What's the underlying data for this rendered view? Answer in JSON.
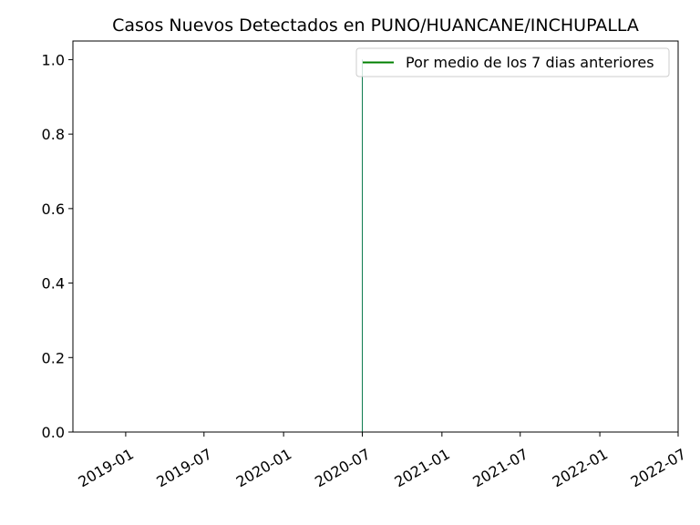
{
  "chart_data": {
    "type": "bar",
    "title": "Casos Nuevos Detectados en PUNO/HUANCANE/INCHUPALLA",
    "xlabel": "",
    "ylabel": "",
    "x_axis_type": "date",
    "xlim": [
      "2018-09-01",
      "2022-07-01"
    ],
    "ylim": [
      0,
      1.05
    ],
    "x_ticks": [
      "2019-01",
      "2019-07",
      "2020-01",
      "2020-07",
      "2021-01",
      "2021-07",
      "2022-01",
      "2022-07"
    ],
    "y_ticks": [
      "0.0",
      "0.2",
      "0.4",
      "0.6",
      "0.8",
      "1.0"
    ],
    "grid": false,
    "legend_position": "top-right",
    "series": [
      {
        "name": "Por medio de los 7 dias anteriores",
        "type": "line",
        "color": "#008000",
        "points": [
          {
            "x": "2020-07-01",
            "y": 1.0
          }
        ]
      },
      {
        "type": "bar",
        "color": "#1f77b4",
        "points": [
          {
            "x": "2020-07-01",
            "y": 1.0
          }
        ]
      }
    ]
  }
}
